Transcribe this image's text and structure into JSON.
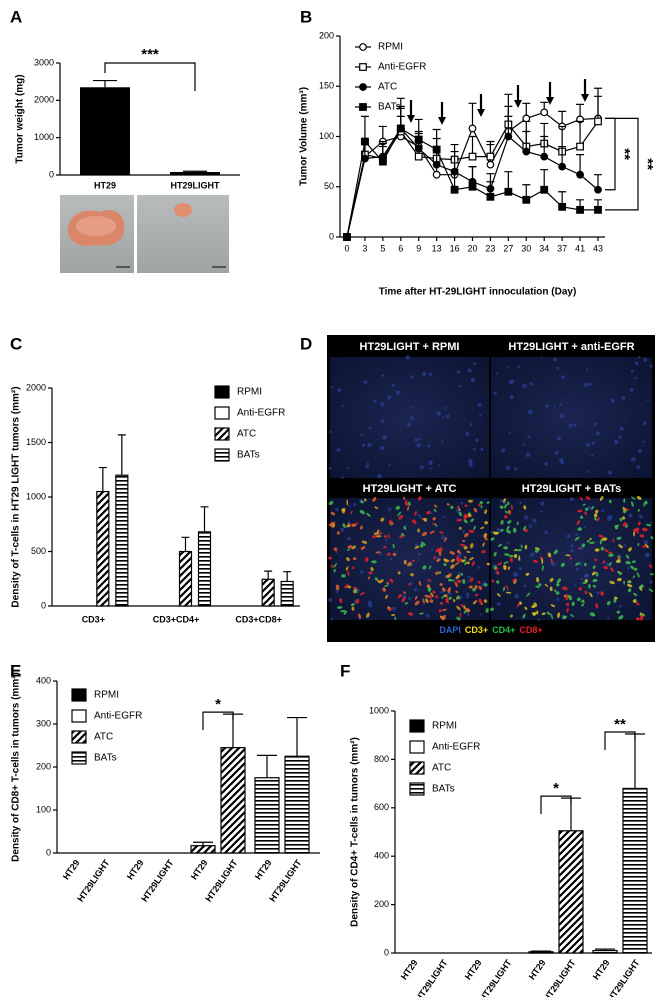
{
  "chart_data": [
    {
      "panel": "A",
      "type": "bar",
      "ylabel": "Tumor weight (mg)",
      "categories": [
        "HT29",
        "HT29LIGHT"
      ],
      "values": [
        2350,
        80
      ],
      "errors": [
        180,
        20
      ],
      "color": "#000000",
      "ylim": [
        0,
        3000
      ],
      "yticks": [
        0,
        1000,
        2000,
        3000
      ],
      "annotations": [
        "***"
      ]
    },
    {
      "panel": "B",
      "type": "line",
      "xlabel": "Time after HT-29LIGHT innoculation (Day)",
      "ylabel": "Tumor Volume (mm³)",
      "categories": [
        "0",
        "3",
        "5",
        "6",
        "9",
        "13",
        "16",
        "20",
        "23",
        "27",
        "30",
        "34",
        "37",
        "41",
        "43"
      ],
      "series": [
        {
          "name": "RPMI",
          "color": "#000000",
          "marker": "circle",
          "filled": false,
          "values": [
            0,
            80,
            95,
            100,
            90,
            62,
            62,
            108,
            72,
            105,
            118,
            124,
            110,
            117,
            118
          ],
          "errors": [
            0,
            15,
            15,
            20,
            15,
            15,
            15,
            25,
            20,
            25,
            15,
            10,
            15,
            15,
            30
          ]
        },
        {
          "name": "Anti-EGFR",
          "color": "#000000",
          "marker": "square",
          "filled": false,
          "values": [
            0,
            82,
            78,
            105,
            80,
            78,
            77,
            80,
            80,
            112,
            90,
            93,
            85,
            90,
            115
          ],
          "errors": [
            0,
            15,
            15,
            25,
            15,
            20,
            15,
            20,
            15,
            30,
            25,
            20,
            25,
            25,
            25
          ]
        },
        {
          "name": "ATC",
          "color": "#000000",
          "marker": "circle",
          "filled": true,
          "values": [
            0,
            78,
            80,
            108,
            88,
            72,
            65,
            55,
            48,
            100,
            85,
            80,
            70,
            62,
            47
          ],
          "errors": [
            0,
            15,
            15,
            20,
            15,
            15,
            20,
            15,
            15,
            20,
            20,
            20,
            20,
            20,
            15
          ]
        },
        {
          "name": "BATs",
          "color": "#000000",
          "marker": "square",
          "filled": true,
          "values": [
            0,
            95,
            75,
            108,
            97,
            87,
            47,
            50,
            40,
            45,
            37,
            47,
            30,
            27,
            27
          ],
          "errors": [
            0,
            25,
            15,
            30,
            20,
            20,
            20,
            20,
            15,
            20,
            15,
            20,
            15,
            10,
            10
          ]
        }
      ],
      "ylim": [
        0,
        200
      ],
      "yticks": [
        0,
        50,
        100,
        150,
        200
      ],
      "annotations": [
        "**",
        "**"
      ]
    },
    {
      "panel": "C",
      "type": "grouped_bar",
      "ylabel": "Density of T-cells in HT29 LIGHT tumors (mm²)",
      "categories": [
        "CD3+",
        "CD3+CD4+",
        "CD3+CD8+"
      ],
      "series": [
        {
          "name": "RPMI",
          "color": "#000000",
          "pattern": "solid",
          "values": [
            0,
            0,
            0
          ],
          "errors": [
            null,
            null,
            null
          ]
        },
        {
          "name": "Anti-EGFR",
          "color": "#000000",
          "pattern": "open",
          "values": [
            0,
            0,
            0
          ],
          "errors": [
            null,
            null,
            null
          ]
        },
        {
          "name": "ATC",
          "color": "#000000",
          "pattern": "diagonal",
          "values": [
            1050,
            500,
            245
          ],
          "errors": [
            220,
            130,
            75
          ]
        },
        {
          "name": "BATs",
          "color": "#000000",
          "pattern": "horizontal",
          "values": [
            1200,
            680,
            225
          ],
          "errors": [
            370,
            230,
            90
          ]
        }
      ],
      "ylim": [
        0,
        2000
      ],
      "yticks": [
        0,
        500,
        1000,
        1500,
        2000
      ]
    },
    {
      "panel": "E",
      "type": "grouped_bar",
      "ylabel": "Density of CD8+ T-cells in tumors (mm²)",
      "categories": [
        "HT29",
        "HT29LIGHT",
        "HT29",
        "HT29LIGHT",
        "HT29",
        "HT29LIGHT",
        "HT29",
        "HT29LIGHT"
      ],
      "series": [
        {
          "name": "RPMI",
          "color": "#000000",
          "pattern": "solid",
          "values": [
            0,
            0,
            null,
            null,
            null,
            null,
            null,
            null
          ],
          "errors": [
            null,
            null,
            null,
            null,
            null,
            null,
            null,
            null
          ]
        },
        {
          "name": "Anti-EGFR",
          "color": "#000000",
          "pattern": "open",
          "values": [
            null,
            null,
            0,
            0,
            null,
            null,
            null,
            null
          ],
          "errors": [
            null,
            null,
            null,
            null,
            null,
            null,
            null,
            null
          ]
        },
        {
          "name": "ATC",
          "color": "#000000",
          "pattern": "diagonal",
          "values": [
            null,
            null,
            null,
            null,
            17,
            245,
            null,
            null
          ],
          "errors": [
            null,
            null,
            null,
            null,
            8,
            78,
            null,
            null
          ]
        },
        {
          "name": "BATs",
          "color": "#000000",
          "pattern": "horizontal",
          "values": [
            null,
            null,
            null,
            null,
            null,
            null,
            175,
            225
          ],
          "errors": [
            null,
            null,
            null,
            null,
            null,
            null,
            52,
            90
          ]
        }
      ],
      "ylim": [
        0,
        400
      ],
      "yticks": [
        0,
        100,
        200,
        300,
        400
      ],
      "annotations": [
        "*"
      ]
    },
    {
      "panel": "F",
      "type": "grouped_bar",
      "ylabel": "Density of CD4+ T-cells in tumors (mm²)",
      "categories": [
        "HT29",
        "HT29LIGHT",
        "HT29",
        "HT29LIGHT",
        "HT29",
        "HT29LIGHT",
        "HT29",
        "HT29LIGHT"
      ],
      "series": [
        {
          "name": "RPMI",
          "color": "#000000",
          "pattern": "solid",
          "values": [
            0,
            0,
            null,
            null,
            null,
            null,
            null,
            null
          ],
          "errors": [
            null,
            null,
            null,
            null,
            null,
            null,
            null,
            null
          ]
        },
        {
          "name": "Anti-EGFR",
          "color": "#000000",
          "pattern": "open",
          "values": [
            null,
            null,
            0,
            0,
            null,
            null,
            null,
            null
          ],
          "errors": [
            null,
            null,
            null,
            null,
            null,
            null,
            null,
            null
          ]
        },
        {
          "name": "ATC",
          "color": "#000000",
          "pattern": "diagonal",
          "values": [
            null,
            null,
            null,
            null,
            5,
            505,
            null,
            null
          ],
          "errors": [
            null,
            null,
            null,
            null,
            3,
            135,
            null,
            null
          ]
        },
        {
          "name": "BATs",
          "color": "#000000",
          "pattern": "horizontal",
          "values": [
            null,
            null,
            null,
            null,
            null,
            null,
            10,
            680
          ],
          "errors": [
            null,
            null,
            null,
            null,
            null,
            null,
            6,
            225
          ]
        }
      ],
      "ylim": [
        0,
        1000
      ],
      "yticks": [
        0,
        200,
        400,
        600,
        800,
        1000
      ],
      "annotations": [
        "*",
        "**"
      ]
    }
  ],
  "figure_d": {
    "panel": "D",
    "titles": [
      "HT29LIGHT + RPMI",
      "HT29LIGHT + anti-EGFR",
      "HT29LIGHT + ATC",
      "HT29LIGHT + BATs"
    ],
    "stains": [
      {
        "label": "DAPI",
        "color": "#2f63d8"
      },
      {
        "label": "CD3+",
        "color": "#f2e01a"
      },
      {
        "label": "CD4+",
        "color": "#22c04a"
      },
      {
        "label": "CD8+",
        "color": "#e8202a"
      }
    ]
  }
}
